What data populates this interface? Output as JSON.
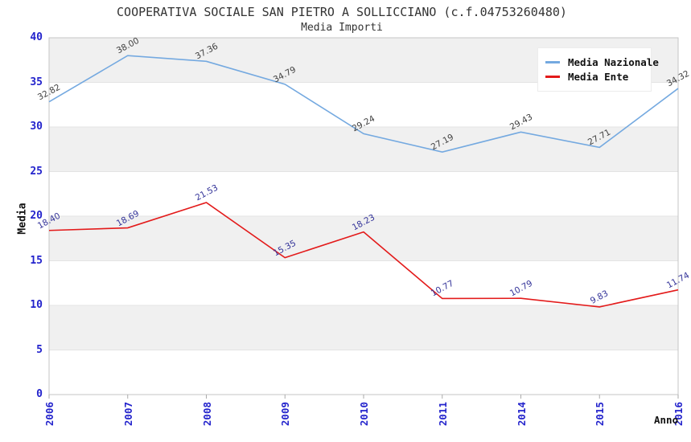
{
  "title": "COOPERATIVA SOCIALE SAN PIETRO A SOLLICCIANO (c.f.04753260480)",
  "subtitle": "Media Importi",
  "chart_data": {
    "type": "line",
    "title": "COOPERATIVA SOCIALE SAN PIETRO A SOLLICCIANO (c.f.04753260480)",
    "subtitle": "Media Importi",
    "xlabel": "Anno",
    "ylabel": "Media",
    "categories": [
      "2006",
      "2007",
      "2008",
      "2009",
      "2010",
      "2011",
      "2014",
      "2015",
      "2016"
    ],
    "series": [
      {
        "name": "Media Nazionale",
        "color": "#74a9e0",
        "label_color": "#404040",
        "values": [
          32.82,
          38.0,
          37.36,
          34.79,
          29.24,
          27.19,
          29.43,
          27.71,
          34.32
        ]
      },
      {
        "name": "Media Ente",
        "color": "#e31a1a",
        "label_color": "#333399",
        "values": [
          18.4,
          18.69,
          21.53,
          15.35,
          18.23,
          10.77,
          10.79,
          9.83,
          11.74
        ]
      }
    ],
    "ylim": [
      0,
      40
    ],
    "yticks": [
      "0",
      "5",
      "10",
      "15",
      "20",
      "25",
      "30",
      "35",
      "40"
    ],
    "grid": "alternating-horizontal-bands",
    "legend_position": "top-right",
    "styles": {
      "tick_label_color": "#2323cc",
      "band_color": "#f0f0f0",
      "grid_line_color": "#e3e3e3",
      "plot_border_color": "#c6c6c6",
      "tick_mark_color": "#aaaaaa",
      "background": "#ffffff"
    }
  },
  "legend": {
    "items": [
      {
        "label": "Media Nazionale"
      },
      {
        "label": "Media Ente"
      }
    ]
  }
}
